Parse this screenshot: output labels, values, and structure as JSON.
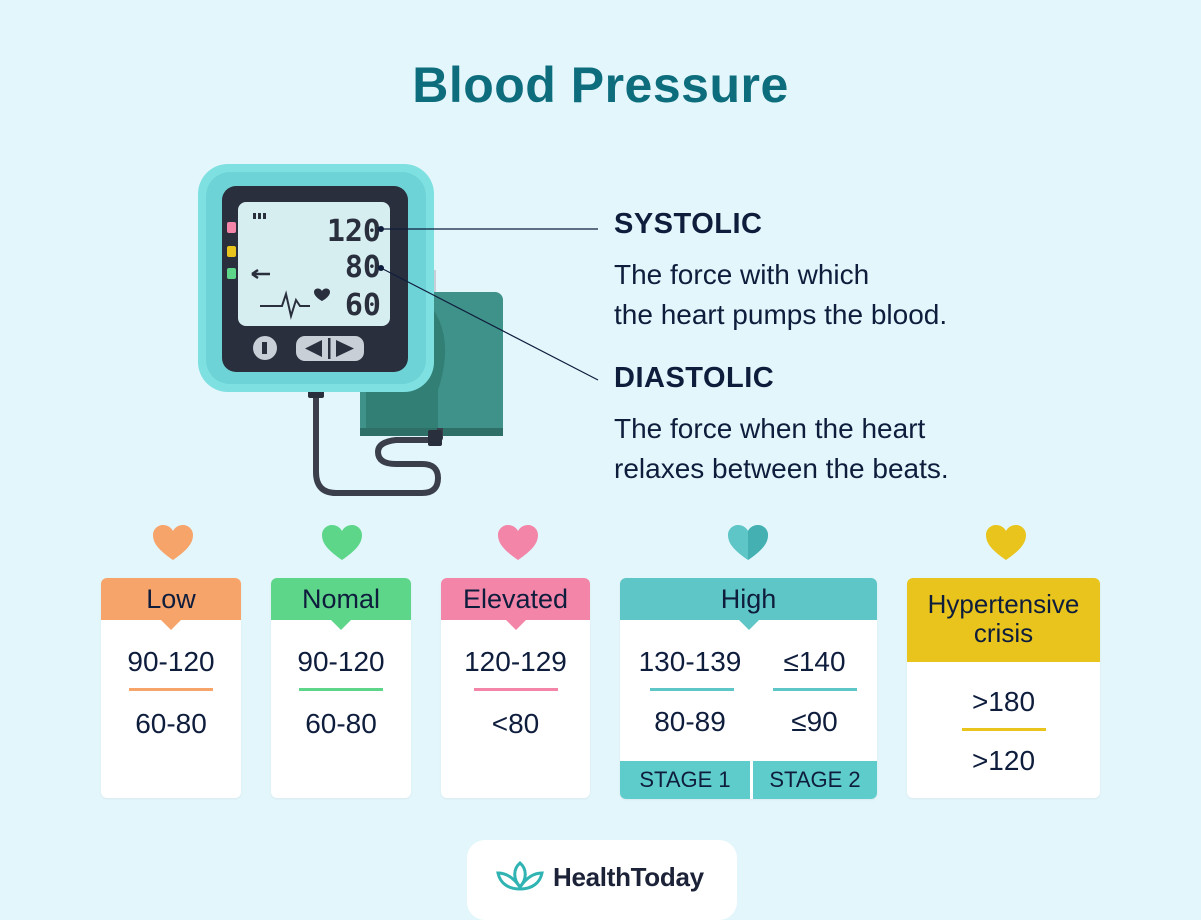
{
  "title": "Blood Pressure",
  "monitor": {
    "systolic_reading": "120",
    "diastolic_reading": "80",
    "pulse_reading": "60"
  },
  "systolic": {
    "label": "SYSTOLIC",
    "description_line1": "The force with which",
    "description_line2": "the heart pumps the blood."
  },
  "diastolic": {
    "label": "DIASTOLIC",
    "description_line1": "The force when the heart",
    "description_line2": "relaxes between the beats."
  },
  "categories": {
    "low": {
      "label": "Low",
      "systolic": "90-120",
      "diastolic": "60-80",
      "color": "#f6a46a"
    },
    "normal": {
      "label": "Nomal",
      "systolic": "90-120",
      "diastolic": "60-80",
      "color": "#5ed68a"
    },
    "elevated": {
      "label": "Elevated",
      "systolic": "120-129",
      "diastolic": "<80",
      "color": "#f285a8"
    },
    "high": {
      "label": "High",
      "color": "#5ec6c6",
      "stage1": {
        "label": "STAGE 1",
        "systolic": "130-139",
        "diastolic": "80-89"
      },
      "stage2": {
        "label": "STAGE 2",
        "systolic": "≤140",
        "diastolic": "≤90"
      }
    },
    "crisis": {
      "label_line1": "Hypertensive",
      "label_line2": "crisis",
      "systolic": ">180",
      "diastolic": ">120",
      "color": "#e8c41c"
    }
  },
  "brand": {
    "name": "HealthToday"
  }
}
